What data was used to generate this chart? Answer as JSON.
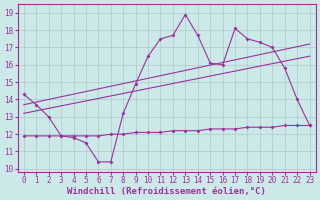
{
  "background_color": "#cce8e8",
  "grid_color": "#aacccc",
  "line_color": "#993399",
  "xlabel": "Windchill (Refroidissement éolien,°C)",
  "xlabel_fontsize": 6.5,
  "xtick_fontsize": 5.5,
  "ytick_fontsize": 5.5,
  "ylim": [
    9.8,
    19.5
  ],
  "xlim": [
    -0.5,
    23.5
  ],
  "yticks": [
    10,
    11,
    12,
    13,
    14,
    15,
    16,
    17,
    18,
    19
  ],
  "xticks": [
    0,
    1,
    2,
    3,
    4,
    5,
    6,
    7,
    8,
    9,
    10,
    11,
    12,
    13,
    14,
    15,
    16,
    17,
    18,
    19,
    20,
    21,
    22,
    23
  ],
  "series1_x": [
    0,
    1,
    2,
    3,
    4,
    5,
    6,
    7,
    8,
    9,
    10,
    11,
    12,
    13,
    14,
    15,
    16,
    17,
    18,
    19,
    20,
    21,
    22,
    23
  ],
  "series1_y": [
    14.3,
    13.7,
    13.0,
    11.9,
    11.8,
    11.5,
    10.4,
    10.4,
    13.2,
    14.9,
    16.5,
    17.5,
    17.7,
    18.9,
    17.7,
    16.1,
    16.0,
    18.1,
    17.5,
    17.3,
    17.0,
    15.8,
    14.0,
    12.5
  ],
  "series2_x": [
    0,
    1,
    2,
    3,
    4,
    5,
    6,
    7,
    8,
    9,
    10,
    11,
    12,
    13,
    14,
    15,
    16,
    17,
    18,
    19,
    20,
    21,
    22,
    23
  ],
  "series2_y": [
    11.9,
    11.9,
    11.9,
    11.9,
    11.9,
    11.9,
    11.9,
    12.0,
    12.0,
    12.1,
    12.1,
    12.1,
    12.2,
    12.2,
    12.2,
    12.3,
    12.3,
    12.3,
    12.4,
    12.4,
    12.4,
    12.5,
    12.5,
    12.5
  ],
  "trend1_x": [
    0,
    23
  ],
  "trend1_y": [
    13.2,
    16.5
  ],
  "trend2_x": [
    0,
    23
  ],
  "trend2_y": [
    13.7,
    17.2
  ]
}
